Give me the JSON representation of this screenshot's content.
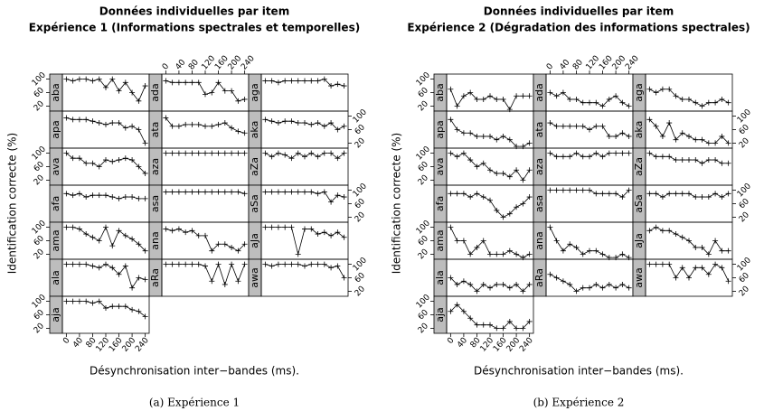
{
  "chart_data": [
    {
      "type": "line",
      "title": "Données individuelles par item",
      "subtitle": "Expérience 1 (Informations spectrales et temporelles)",
      "xlabel": "Désynchronisation inter−bandes (ms).",
      "ylabel": "Identification correcte (%)",
      "caption": "(a) Expérience 1",
      "color": "#000000",
      "x": [
        0,
        20,
        40,
        60,
        80,
        100,
        120,
        140,
        160,
        180,
        200,
        220,
        240
      ],
      "xlim": [
        -12,
        252
      ],
      "xticks": [
        0,
        40,
        80,
        120,
        160,
        200,
        240
      ],
      "ylim": [
        5,
        115
      ],
      "yticks": [
        20,
        60,
        100
      ],
      "panels": [
        {
          "name": "aba",
          "values": [
            100,
            95,
            100,
            100,
            95,
            100,
            75,
            100,
            65,
            90,
            60,
            35,
            80
          ]
        },
        {
          "name": "ada",
          "values": [
            95,
            90,
            90,
            90,
            90,
            90,
            55,
            60,
            90,
            65,
            65,
            35,
            40
          ]
        },
        {
          "name": "aga",
          "values": [
            95,
            95,
            90,
            95,
            95,
            95,
            95,
            95,
            95,
            100,
            80,
            85,
            80
          ]
        },
        {
          "name": "apa",
          "values": [
            95,
            90,
            90,
            90,
            85,
            80,
            75,
            80,
            80,
            65,
            70,
            60,
            20
          ]
        },
        {
          "name": "ata",
          "values": [
            95,
            70,
            70,
            75,
            75,
            75,
            70,
            70,
            75,
            80,
            65,
            55,
            50
          ]
        },
        {
          "name": "aka",
          "values": [
            90,
            85,
            80,
            85,
            85,
            80,
            80,
            75,
            80,
            70,
            80,
            60,
            70
          ]
        },
        {
          "name": "ava",
          "values": [
            100,
            85,
            85,
            70,
            70,
            60,
            80,
            75,
            80,
            85,
            80,
            60,
            40
          ]
        },
        {
          "name": "aza",
          "values": [
            100,
            100,
            100,
            100,
            100,
            100,
            100,
            100,
            100,
            100,
            100,
            100,
            100
          ]
        },
        {
          "name": "aZa",
          "values": [
            100,
            90,
            100,
            95,
            85,
            100,
            90,
            100,
            90,
            100,
            100,
            85,
            100
          ]
        },
        {
          "name": "afa",
          "values": [
            90,
            85,
            90,
            80,
            85,
            85,
            85,
            80,
            75,
            80,
            80,
            75,
            75
          ]
        },
        {
          "name": "asa",
          "values": [
            95,
            95,
            95,
            95,
            95,
            95,
            95,
            95,
            95,
            95,
            95,
            95,
            90
          ]
        },
        {
          "name": "aSa",
          "values": [
            95,
            95,
            95,
            95,
            95,
            95,
            95,
            95,
            90,
            95,
            65,
            85,
            80
          ]
        },
        {
          "name": "ama",
          "values": [
            100,
            100,
            95,
            80,
            70,
            60,
            100,
            45,
            90,
            75,
            65,
            50,
            30
          ]
        },
        {
          "name": "ana",
          "values": [
            95,
            90,
            95,
            85,
            90,
            75,
            75,
            30,
            50,
            50,
            40,
            30,
            50
          ]
        },
        {
          "name": "aJa",
          "values": [
            100,
            100,
            100,
            100,
            100,
            20,
            95,
            95,
            80,
            85,
            75,
            85,
            70
          ]
        },
        {
          "name": "ala",
          "values": [
            100,
            100,
            100,
            100,
            95,
            90,
            100,
            90,
            70,
            95,
            30,
            60,
            55
          ]
        },
        {
          "name": "aRa",
          "values": [
            100,
            100,
            100,
            100,
            100,
            100,
            95,
            50,
            100,
            40,
            100,
            50,
            100
          ]
        },
        {
          "name": "awa",
          "values": [
            100,
            95,
            100,
            100,
            100,
            100,
            95,
            100,
            100,
            100,
            90,
            95,
            60
          ]
        },
        {
          "name": "aja",
          "values": [
            100,
            100,
            100,
            100,
            95,
            100,
            80,
            85,
            85,
            85,
            75,
            70,
            55
          ]
        }
      ]
    },
    {
      "type": "line",
      "title": "Données individuelles par item",
      "subtitle": "Expérience 2 (Dégradation des informations spectrales)",
      "xlabel": "Désynchronisation inter−bandes (ms).",
      "ylabel": "Identification correcte (%)",
      "caption": "(b) Expérience 2",
      "color": "#000000",
      "x": [
        0,
        20,
        40,
        60,
        80,
        100,
        120,
        140,
        160,
        180,
        200,
        220,
        240
      ],
      "xlim": [
        -12,
        252
      ],
      "xticks": [
        0,
        40,
        80,
        120,
        160,
        200,
        240
      ],
      "ylim": [
        5,
        115
      ],
      "yticks": [
        20,
        60,
        100
      ],
      "panels": [
        {
          "name": "aba",
          "values": [
            70,
            20,
            50,
            60,
            40,
            40,
            50,
            40,
            40,
            10,
            50,
            50,
            50
          ]
        },
        {
          "name": "ada",
          "values": [
            60,
            50,
            60,
            40,
            40,
            30,
            30,
            30,
            20,
            40,
            50,
            30,
            20
          ]
        },
        {
          "name": "aga",
          "values": [
            70,
            60,
            70,
            70,
            50,
            40,
            40,
            30,
            20,
            30,
            30,
            40,
            30
          ]
        },
        {
          "name": "apa",
          "values": [
            90,
            60,
            50,
            50,
            40,
            40,
            40,
            30,
            40,
            30,
            10,
            10,
            20
          ]
        },
        {
          "name": "ata",
          "values": [
            80,
            70,
            70,
            70,
            70,
            70,
            60,
            70,
            70,
            40,
            40,
            50,
            40
          ]
        },
        {
          "name": "aka",
          "values": [
            90,
            70,
            40,
            80,
            30,
            50,
            40,
            30,
            30,
            20,
            20,
            40,
            20
          ]
        },
        {
          "name": "ava",
          "values": [
            100,
            90,
            100,
            80,
            60,
            70,
            50,
            40,
            40,
            30,
            50,
            20,
            50
          ]
        },
        {
          "name": "aza",
          "values": [
            100,
            90,
            90,
            90,
            100,
            90,
            90,
            100,
            90,
            100,
            100,
            100,
            100
          ]
        },
        {
          "name": "aZa",
          "values": [
            100,
            90,
            90,
            90,
            80,
            80,
            80,
            80,
            70,
            80,
            80,
            70,
            70
          ]
        },
        {
          "name": "afa",
          "values": [
            90,
            90,
            90,
            80,
            90,
            80,
            70,
            40,
            20,
            30,
            50,
            60,
            80
          ]
        },
        {
          "name": "asa",
          "values": [
            100,
            100,
            100,
            100,
            100,
            100,
            100,
            90,
            90,
            90,
            90,
            80,
            100
          ]
        },
        {
          "name": "aSa",
          "values": [
            90,
            90,
            80,
            90,
            90,
            90,
            90,
            80,
            80,
            80,
            90,
            80,
            90
          ]
        },
        {
          "name": "ama",
          "values": [
            100,
            60,
            60,
            20,
            40,
            60,
            20,
            20,
            20,
            30,
            20,
            10,
            20
          ]
        },
        {
          "name": "ana",
          "values": [
            100,
            60,
            30,
            50,
            40,
            20,
            30,
            30,
            20,
            10,
            10,
            20,
            10
          ]
        },
        {
          "name": "aJa",
          "values": [
            90,
            100,
            90,
            90,
            80,
            70,
            60,
            40,
            40,
            20,
            60,
            30,
            30
          ]
        },
        {
          "name": "ala",
          "values": [
            60,
            40,
            50,
            40,
            20,
            40,
            30,
            40,
            40,
            30,
            40,
            20,
            40
          ]
        },
        {
          "name": "aRa",
          "values": [
            70,
            60,
            50,
            40,
            20,
            30,
            30,
            40,
            30,
            40,
            30,
            40,
            30
          ]
        },
        {
          "name": "awa",
          "values": [
            100,
            100,
            100,
            100,
            60,
            90,
            60,
            90,
            90,
            70,
            100,
            90,
            50
          ]
        },
        {
          "name": "aja",
          "values": [
            70,
            90,
            70,
            50,
            30,
            30,
            30,
            20,
            20,
            40,
            20,
            20,
            40
          ]
        }
      ]
    }
  ]
}
